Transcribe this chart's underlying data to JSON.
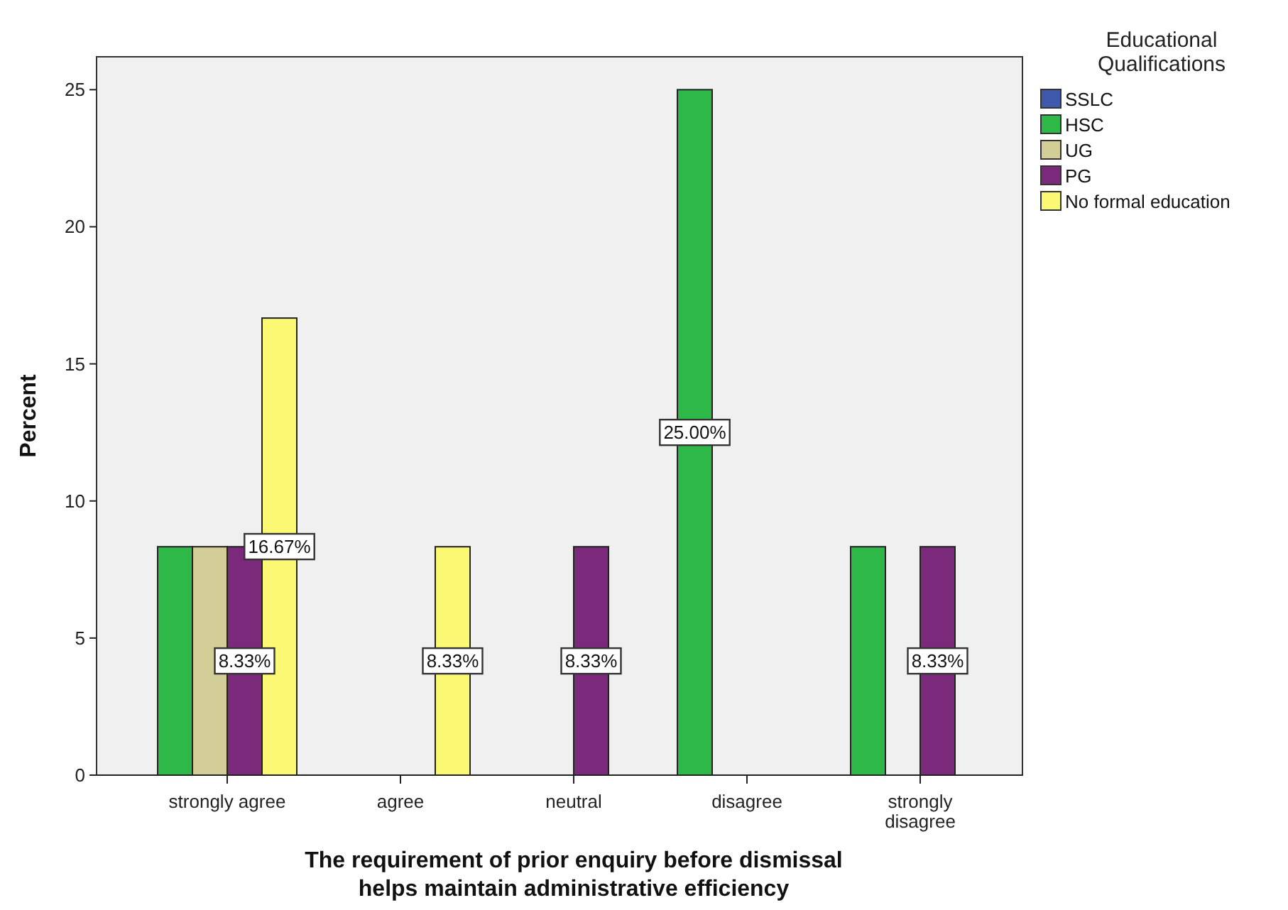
{
  "chart_data": {
    "type": "bar",
    "xlabel": "The requirement of prior enquiry before dismissal helps maintain administrative efficiency",
    "ylabel": "Percent",
    "legend_title": "Educational Qualifications",
    "legend": "top right",
    "grid": false,
    "categories": [
      "strongly agree",
      "agree",
      "neutral",
      "disagree",
      "strongly disagree"
    ],
    "ylim": [
      0,
      26.2
    ],
    "yticks": [
      0,
      5,
      10,
      15,
      20,
      25
    ],
    "series": [
      {
        "name": "SSLC",
        "color": "#3e58ac",
        "values": [
          0,
          0,
          0,
          0,
          0
        ]
      },
      {
        "name": "HSC",
        "color": "#2eb848",
        "values": [
          8.33,
          0,
          0,
          25,
          8.33
        ],
        "value_labels": [
          null,
          null,
          null,
          "25.00%",
          null
        ]
      },
      {
        "name": "UG",
        "color": "#d3ce97",
        "values": [
          8.33,
          0,
          0,
          0,
          0
        ]
      },
      {
        "name": "PG",
        "color": "#7b2a7b",
        "values": [
          8.33,
          0,
          8.33,
          0,
          8.33
        ],
        "value_labels": [
          "8.33%",
          null,
          "8.33%",
          null,
          "8.33%"
        ]
      },
      {
        "name": "No formal education",
        "color": "#fbf873",
        "values": [
          16.67,
          8.33,
          0,
          0,
          0
        ],
        "value_labels": [
          "16.67%",
          "8.33%",
          null,
          null,
          null
        ]
      }
    ]
  }
}
